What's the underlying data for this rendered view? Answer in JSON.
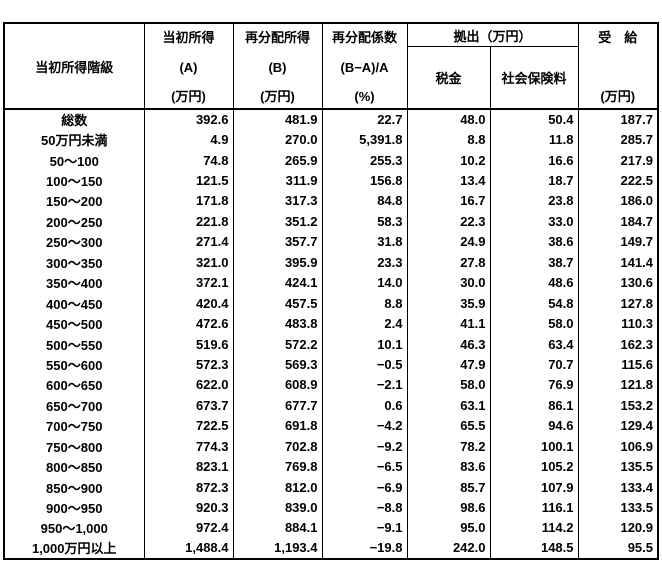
{
  "table": {
    "title_semantic": "income-redistribution-by-initial-income-class",
    "header": {
      "income_class": "当初所得階級",
      "initial_income": [
        "当初所得",
        "(A)",
        "(万円)"
      ],
      "redistributed_income": [
        "再分配所得",
        "(B)",
        "(万円)"
      ],
      "coefficient": [
        "再分配係数",
        "(B−A)/A",
        "(%)"
      ],
      "contribution_group": "拠出（万円）",
      "tax": "税金",
      "social_insurance": "社会保険料",
      "benefit": [
        "受　給",
        "(万円)"
      ]
    },
    "rows": [
      [
        "総数",
        "392.6",
        "481.9",
        "22.7",
        "48.0",
        "50.4",
        "187.7"
      ],
      [
        "50万円未満",
        "4.9",
        "270.0",
        "5,391.8",
        "8.8",
        "11.8",
        "285.7"
      ],
      [
        "50～100",
        "74.8",
        "265.9",
        "255.3",
        "10.2",
        "16.6",
        "217.9"
      ],
      [
        "100～150",
        "121.5",
        "311.9",
        "156.8",
        "13.4",
        "18.7",
        "222.5"
      ],
      [
        "150～200",
        "171.8",
        "317.3",
        "84.8",
        "16.7",
        "23.8",
        "186.0"
      ],
      [
        "200～250",
        "221.8",
        "351.2",
        "58.3",
        "22.3",
        "33.0",
        "184.7"
      ],
      [
        "250～300",
        "271.4",
        "357.7",
        "31.8",
        "24.9",
        "38.6",
        "149.7"
      ],
      [
        "300～350",
        "321.0",
        "395.9",
        "23.3",
        "27.8",
        "38.7",
        "141.4"
      ],
      [
        "350～400",
        "372.1",
        "424.1",
        "14.0",
        "30.0",
        "48.6",
        "130.6"
      ],
      [
        "400～450",
        "420.4",
        "457.5",
        "8.8",
        "35.9",
        "54.8",
        "127.8"
      ],
      [
        "450～500",
        "472.6",
        "483.8",
        "2.4",
        "41.1",
        "58.0",
        "110.3"
      ],
      [
        "500～550",
        "519.6",
        "572.2",
        "10.1",
        "46.3",
        "63.4",
        "162.3"
      ],
      [
        "550～600",
        "572.3",
        "569.3",
        "−0.5",
        "47.9",
        "70.7",
        "115.6"
      ],
      [
        "600～650",
        "622.0",
        "608.9",
        "−2.1",
        "58.0",
        "76.9",
        "121.8"
      ],
      [
        "650～700",
        "673.7",
        "677.7",
        "0.6",
        "63.1",
        "86.1",
        "153.2"
      ],
      [
        "700～750",
        "722.5",
        "691.8",
        "−4.2",
        "65.5",
        "94.6",
        "129.4"
      ],
      [
        "750～800",
        "774.3",
        "702.8",
        "−9.2",
        "78.2",
        "100.1",
        "106.9"
      ],
      [
        "800～850",
        "823.1",
        "769.8",
        "−6.5",
        "83.6",
        "105.2",
        "135.5"
      ],
      [
        "850～900",
        "872.3",
        "812.0",
        "−6.9",
        "85.7",
        "107.9",
        "133.4"
      ],
      [
        "900～950",
        "920.3",
        "839.0",
        "−8.8",
        "98.6",
        "116.1",
        "133.5"
      ],
      [
        "950～1,000",
        "972.4",
        "884.1",
        "−9.1",
        "95.0",
        "114.2",
        "120.9"
      ],
      [
        "1,000万円以上",
        "1,488.4",
        "1,193.4",
        "−19.8",
        "242.0",
        "148.5",
        "95.5"
      ]
    ],
    "colors": {
      "border": "#000000",
      "text": "#000000",
      "background": "#ffffff"
    }
  }
}
